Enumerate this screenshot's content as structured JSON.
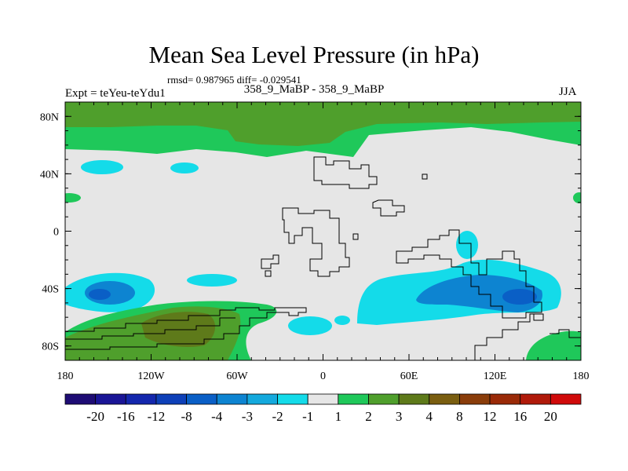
{
  "chart_data": {
    "type": "heatmap",
    "title": "Mean Sea Level Pressure (in hPa)",
    "stats_line": "rmsd= 0.987965 diff= -0.029541",
    "experiment_label": "Expt = teYeu-teYdu1",
    "case_label": "358_9_MaBP - 358_9_MaBP",
    "season": "JJA",
    "xlim": [
      -180,
      180
    ],
    "ylim": [
      -90,
      90
    ],
    "x_ticks": [
      {
        "value": -180,
        "label": "180"
      },
      {
        "value": -120,
        "label": "120W"
      },
      {
        "value": -60,
        "label": "60W"
      },
      {
        "value": 0,
        "label": "0"
      },
      {
        "value": 60,
        "label": "60E"
      },
      {
        "value": 120,
        "label": "120E"
      },
      {
        "value": 180,
        "label": "180"
      }
    ],
    "y_ticks": [
      {
        "value": 80,
        "label": "80N"
      },
      {
        "value": 40,
        "label": "40N"
      },
      {
        "value": 0,
        "label": "0"
      },
      {
        "value": -40,
        "label": "40S"
      },
      {
        "value": -80,
        "label": "80S"
      }
    ],
    "colorbar": {
      "labels": [
        "-20",
        "-16",
        "-12",
        "-8",
        "-4",
        "-3",
        "-2",
        "-1",
        "1",
        "2",
        "3",
        "4",
        "8",
        "12",
        "16",
        "20"
      ],
      "colors": [
        "#1e0c74",
        "#1a1596",
        "#1427ad",
        "#0e40b8",
        "#0a5fc6",
        "#0d84d1",
        "#14a9dd",
        "#14dbe9",
        "#e6e6e6",
        "#1fc85a",
        "#4f9f2c",
        "#5e7a1a",
        "#7a5e10",
        "#8a3d0a",
        "#9a2a08",
        "#b01a0a",
        "#d00a0a"
      ]
    },
    "regions": [
      {
        "name": "arctic-positive",
        "category": "2",
        "color": "#1fc85a"
      },
      {
        "name": "arctic-core",
        "category": "3",
        "color": "#4f9f2c"
      },
      {
        "name": "north-pacific-low",
        "category": "-2",
        "color": "#14dbe9"
      },
      {
        "name": "south-pacific-low",
        "category": "-3",
        "color": "#0d84d1"
      },
      {
        "name": "southern-ocean-low",
        "category": "-2",
        "color": "#14dbe9"
      },
      {
        "name": "antarctic-high",
        "category": "4",
        "color": "#5e7a1a"
      }
    ]
  }
}
